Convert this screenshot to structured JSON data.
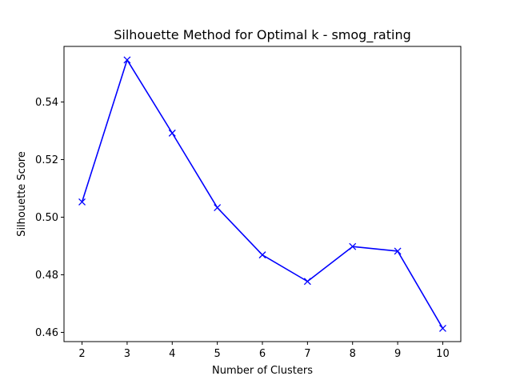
{
  "chart_data": {
    "type": "line",
    "title": "Silhouette Method for Optimal k - smog_rating",
    "xlabel": "Number of Clusters",
    "ylabel": "Silhouette Score",
    "x": [
      2,
      3,
      4,
      5,
      6,
      7,
      8,
      9,
      10
    ],
    "series": [
      {
        "values": [
          0.5053,
          0.5546,
          0.5292,
          0.5033,
          0.4869,
          0.4777,
          0.4898,
          0.4882,
          0.4614
        ],
        "color": "#0000ff",
        "marker": "x-icon"
      }
    ],
    "xticks": [
      2,
      3,
      4,
      5,
      6,
      7,
      8,
      9,
      10
    ],
    "xtick_labels": [
      "2",
      "3",
      "4",
      "5",
      "6",
      "7",
      "8",
      "9",
      "10"
    ],
    "yticks": [
      0.46,
      0.48,
      0.5,
      0.52,
      0.54
    ],
    "ytick_labels": [
      "0.46",
      "0.48",
      "0.50",
      "0.52",
      "0.54"
    ],
    "xlim": [
      1.6,
      10.4
    ],
    "ylim": [
      0.4568,
      0.5593
    ],
    "grid": false,
    "legend": "none"
  }
}
